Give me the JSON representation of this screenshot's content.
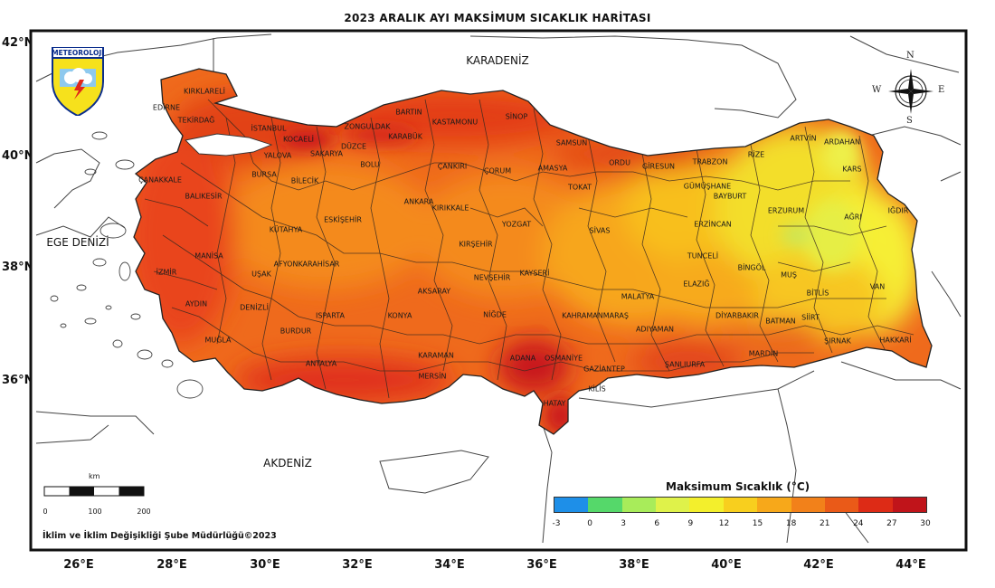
{
  "title": "2023 ARALIK AYI MAKSİMUM SICAKLIK HARİTASI",
  "logo_text": "METEOROLOJİ",
  "lat_labels": [
    "42°N",
    "40°N",
    "38°N",
    "36°N"
  ],
  "lon_labels": [
    "26°E",
    "28°E",
    "30°E",
    "32°E",
    "34°E",
    "36°E",
    "38°E",
    "40°E",
    "42°E",
    "44°E"
  ],
  "seas": {
    "north": "KARADENİZ",
    "west": "EGE DENİZİ",
    "south": "AKDENİZ"
  },
  "compass": {
    "n": "N",
    "s": "S",
    "e": "E",
    "w": "W"
  },
  "scale": {
    "unit": "km",
    "ticks": [
      "0",
      "100",
      "200"
    ]
  },
  "credit": "İklim ve İklim Değişikliği Şube Müdürlüğü©2023",
  "legend": {
    "title": "Maksimum Sıcaklık (°C)",
    "ticks": [
      "-3",
      "0",
      "3",
      "6",
      "9",
      "12",
      "15",
      "18",
      "21",
      "24",
      "27",
      "30"
    ],
    "colors": [
      "#1e8fe8",
      "#55d86a",
      "#a8ec5a",
      "#dff24a",
      "#f3ef2c",
      "#f8cf1e",
      "#f7a81a",
      "#f2811a",
      "#ea5a18",
      "#dd2b16",
      "#c0141a",
      "#8c0c10"
    ]
  },
  "provinces": [
    "KIRKLARELİ",
    "EDİRNE",
    "TEKİRDAĞ",
    "İSTANBUL",
    "KOCAELİ",
    "ZONGULDAK",
    "BARTIN",
    "KARABÜK",
    "KASTAMONU",
    "SİNOP",
    "DÜZCE",
    "SAKARYA",
    "YALOVA",
    "BURSA",
    "BOLU",
    "ÇANKIRI",
    "ÇORUM",
    "AMASYA",
    "SAMSUN",
    "ORDU",
    "GİRESUN",
    "TRABZON",
    "RİZE",
    "ARTVİN",
    "ARDAHAN",
    "KARS",
    "ÇANAKKALE",
    "BALIKESİR",
    "BİLECİK",
    "ESKİŞEHİR",
    "ANKARA",
    "KIRIKKALE",
    "YOZGAT",
    "TOKAT",
    "SİVAS",
    "GÜMÜŞHANE",
    "BAYBURT",
    "ERZURUM",
    "AĞRI",
    "IĞDIR",
    "ERZİNCAN",
    "KÜTAHYA",
    "MANİSA",
    "İZMİR",
    "UŞAK",
    "AFYONKARAHİSAR",
    "KIRŞEHİR",
    "NEVŞEHİR",
    "KAYSERİ",
    "TUNCELİ",
    "BİNGÖL",
    "MUŞ",
    "BİTLİS",
    "VAN",
    "AYDIN",
    "DENİZLİ",
    "ISPARTA",
    "KONYA",
    "AKSARAY",
    "NİĞDE",
    "MALATYA",
    "ELAZIĞ",
    "KAHRAMANMARAŞ",
    "ADIYAMAN",
    "DİYARBAKIR",
    "BATMAN",
    "SİİRT",
    "ŞIRNAK",
    "HAKKARİ",
    "MUĞLA",
    "BURDUR",
    "ANTALYA",
    "KARAMAN",
    "MERSİN",
    "ADANA",
    "OSMANİYE",
    "GAZİANTEP",
    "ŞANLIURFA",
    "MARDİN",
    "KİLİS",
    "HATAY"
  ]
}
